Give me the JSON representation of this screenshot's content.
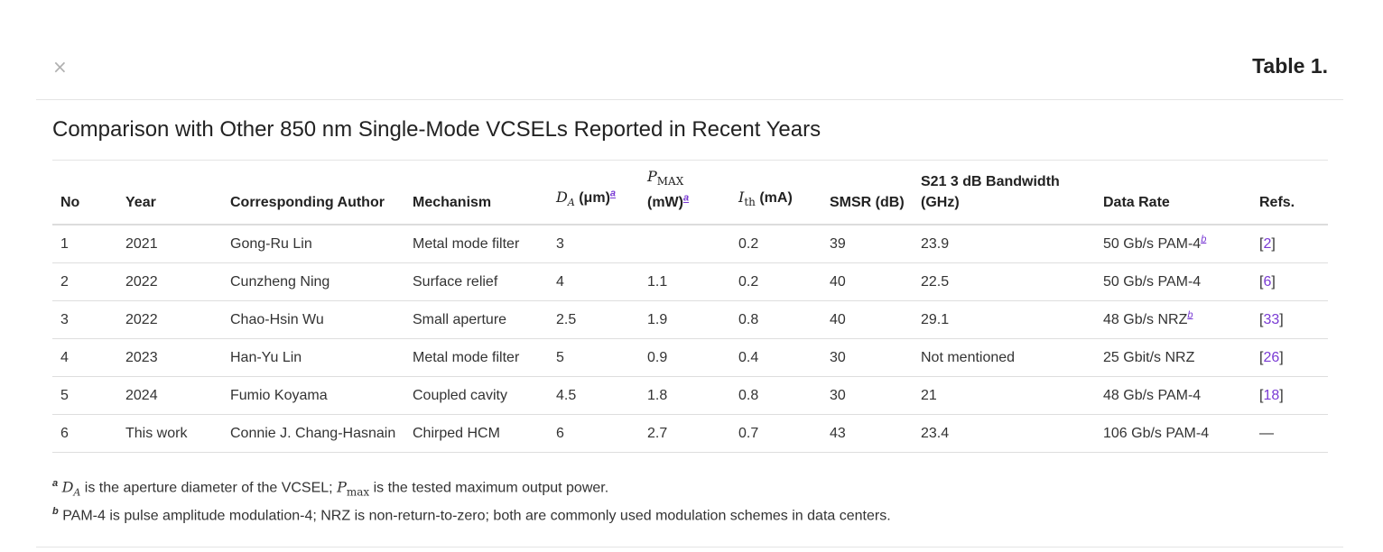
{
  "close_glyph": "×",
  "table_label": "Table 1.",
  "caption": "Comparison with Other 850 nm Single-Mode VCSELs Reported in Recent Years",
  "headers": {
    "no": "No",
    "year": "Year",
    "author": "Corresponding Author",
    "mechanism": "Mechanism",
    "da_sym": "D",
    "da_sub": "A",
    "da_unit": " (μm)",
    "pmax_sym": "P",
    "pmax_sub": "MAX",
    "pmax_unit": "(mW)",
    "ith_sym": "I",
    "ith_sub": "th",
    "ith_unit": " (mA)",
    "smsr": "SMSR (dB)",
    "bw_line1": "S21 3 dB Bandwidth",
    "bw_line2": "(GHz)",
    "rate": "Data Rate",
    "refs": "Refs.",
    "fn_a": "a"
  },
  "rows": [
    {
      "no": "1",
      "year": "2021",
      "author": "Gong-Ru Lin",
      "mechanism": "Metal mode filter",
      "da": "3",
      "pmax": "",
      "ith": "0.2",
      "smsr": "39",
      "bw": "23.9",
      "rate": "50 Gb/s PAM-4",
      "rate_fn": "b",
      "ref": "2"
    },
    {
      "no": "2",
      "year": "2022",
      "author": "Cunzheng Ning",
      "mechanism": "Surface relief",
      "da": "4",
      "pmax": "1.1",
      "ith": "0.2",
      "smsr": "40",
      "bw": "22.5",
      "rate": "50 Gb/s PAM-4",
      "rate_fn": "",
      "ref": "6"
    },
    {
      "no": "3",
      "year": "2022",
      "author": "Chao-Hsin Wu",
      "mechanism": "Small aperture",
      "da": "2.5",
      "pmax": "1.9",
      "ith": "0.8",
      "smsr": "40",
      "bw": "29.1",
      "rate": "48 Gb/s NRZ",
      "rate_fn": "b",
      "ref": "33"
    },
    {
      "no": "4",
      "year": "2023",
      "author": "Han-Yu Lin",
      "mechanism": "Metal mode filter",
      "da": "5",
      "pmax": "0.9",
      "ith": "0.4",
      "smsr": "30",
      "bw": "Not mentioned",
      "rate": "25 Gbit/s NRZ",
      "rate_fn": "",
      "ref": "26"
    },
    {
      "no": "5",
      "year": "2024",
      "author": "Fumio Koyama",
      "mechanism": "Coupled cavity",
      "da": "4.5",
      "pmax": "1.8",
      "ith": "0.8",
      "smsr": "30",
      "bw": "21",
      "rate": "48 Gb/s PAM-4",
      "rate_fn": "",
      "ref": "18"
    },
    {
      "no": "6",
      "year": "This work",
      "author": "Connie J. Chang-Hasnain",
      "mechanism": "Chirped HCM",
      "da": "6",
      "pmax": "2.7",
      "ith": "0.7",
      "smsr": "43",
      "bw": "23.4",
      "rate": "106 Gb/s PAM-4",
      "rate_fn": "",
      "ref": "—"
    }
  ],
  "footnotes": {
    "a_mark": "a",
    "a_sym1": "D",
    "a_sub1": "A",
    "a_text1": " is the aperture diameter of the VCSEL; ",
    "a_sym2": "P",
    "a_sub2": "max",
    "a_text2": " is the tested maximum output power.",
    "b_mark": "b",
    "b_text": "PAM-4 is pulse amplitude modulation-4; NRZ is non-return-to-zero; both are commonly used modulation schemes in data centers."
  }
}
